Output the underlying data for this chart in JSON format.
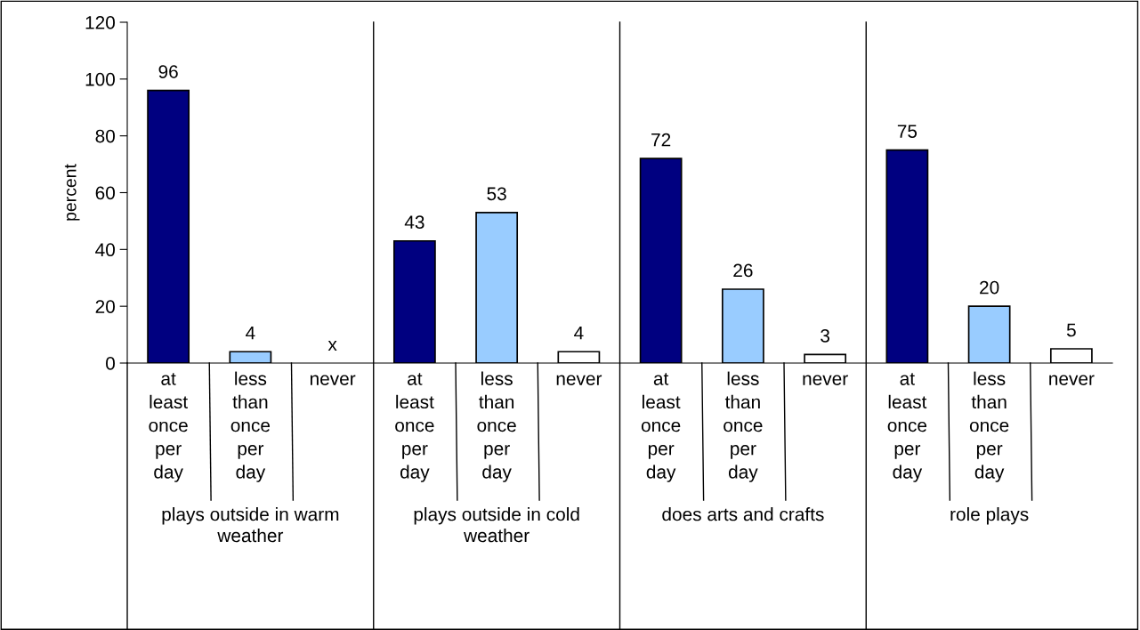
{
  "chart_data": {
    "type": "bar",
    "ylabel": "percent",
    "categories": [
      "at least once per day",
      "less than once per day",
      "never",
      "at least once per day",
      "less than once per day",
      "never",
      "at least once per day",
      "less than once per day",
      "never",
      "at least once per day",
      "less than once per day",
      "never"
    ],
    "values": [
      96,
      4,
      null,
      43,
      53,
      4,
      72,
      26,
      3,
      75,
      20,
      5
    ],
    "value_labels": [
      "96",
      "4",
      "x",
      "43",
      "53",
      "4",
      "72",
      "26",
      "3",
      "75",
      "20",
      "5"
    ],
    "colors": [
      "#000080",
      "#99ccff",
      "#ffffff",
      "#000080",
      "#99ccff",
      "#ffffff",
      "#000080",
      "#99ccff",
      "#ffffff",
      "#000080",
      "#99ccff",
      "#ffffff"
    ],
    "ylim": [
      0,
      120
    ],
    "yticks": [
      0,
      20,
      40,
      60,
      80,
      100,
      120
    ],
    "annotations": [
      "plays outside in warm weather",
      "plays outside in cold weather",
      "does arts and crafts",
      "role plays"
    ],
    "grid": false,
    "legend": false
  }
}
